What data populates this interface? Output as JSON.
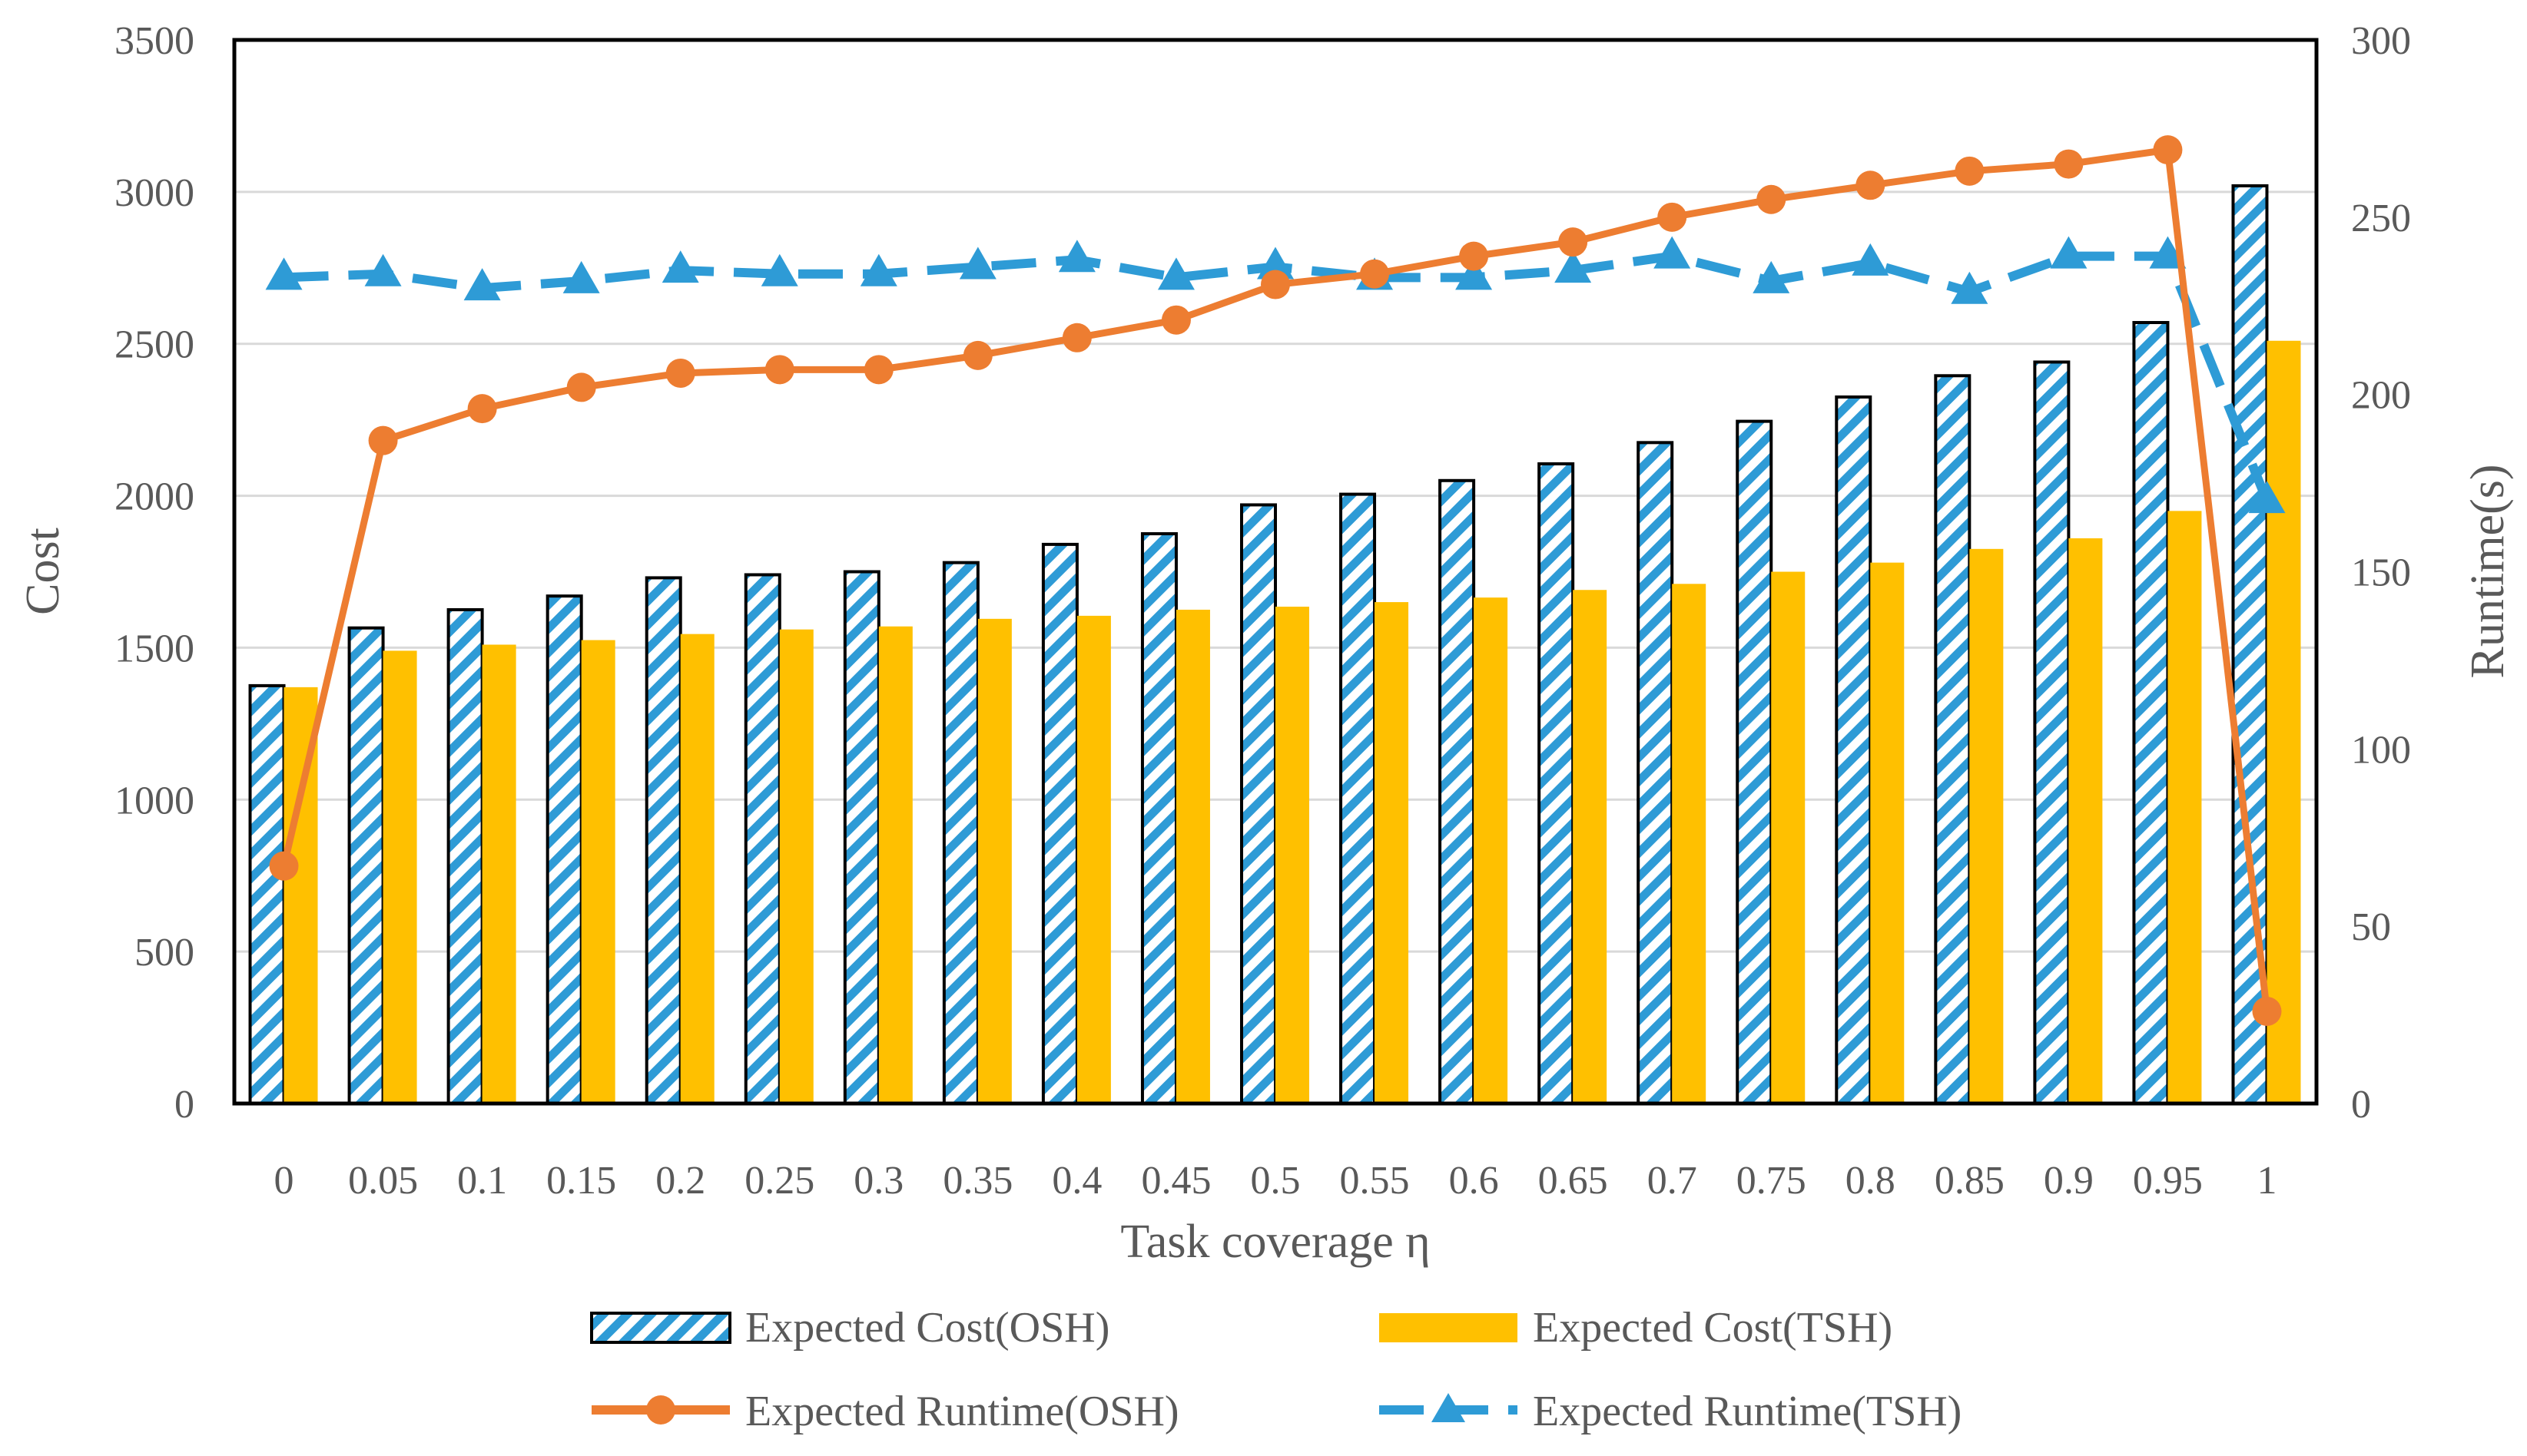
{
  "chart_data": {
    "type": "bar",
    "title": "",
    "xlabel": "Task coverage η",
    "ylabel": "Cost",
    "y2label": "Runtime(s)",
    "ylim": [
      0,
      3500
    ],
    "y2lim": [
      0,
      300
    ],
    "yticks": [
      "0",
      "500",
      "1000",
      "1500",
      "2000",
      "2500",
      "3000",
      "3500"
    ],
    "y2ticks": [
      "0",
      "50",
      "100",
      "150",
      "200",
      "250",
      "300"
    ],
    "categories": [
      "0",
      "0.05",
      "0.1",
      "0.15",
      "0.2",
      "0.25",
      "0.3",
      "0.35",
      "0.4",
      "0.45",
      "0.5",
      "0.55",
      "0.6",
      "0.65",
      "0.7",
      "0.75",
      "0.8",
      "0.85",
      "0.9",
      "0.95",
      "1"
    ],
    "grid": true,
    "legend_position": "bottom",
    "series": [
      {
        "name": "Expected Cost(OSH)",
        "kind": "bar",
        "axis": "left",
        "pattern": "diagonal-stripes",
        "color": "#2E9BD6",
        "edge_color": "#000000",
        "values": [
          1375,
          1565,
          1625,
          1670,
          1730,
          1740,
          1750,
          1780,
          1840,
          1875,
          1970,
          2005,
          2050,
          2105,
          2175,
          2245,
          2325,
          2395,
          2440,
          2570,
          3020
        ]
      },
      {
        "name": "Expected Cost(TSH)",
        "kind": "bar",
        "axis": "left",
        "color": "#FFC000",
        "values": [
          1370,
          1490,
          1510,
          1525,
          1545,
          1560,
          1570,
          1595,
          1605,
          1625,
          1635,
          1650,
          1665,
          1690,
          1710,
          1750,
          1780,
          1825,
          1860,
          1950,
          2510
        ]
      },
      {
        "name": "Expected Runtime(OSH)",
        "kind": "line",
        "axis": "right",
        "marker": "circle",
        "color": "#ED7D31",
        "values": [
          67,
          187,
          196,
          202,
          206,
          207,
          207,
          211,
          216,
          221,
          231,
          234,
          239,
          243,
          250,
          255,
          259,
          263,
          265,
          269,
          26
        ]
      },
      {
        "name": "Expected Runtime(TSH)",
        "kind": "line",
        "axis": "right",
        "marker": "triangle",
        "dash": "long-dash",
        "color": "#2E9BD6",
        "values": [
          233,
          234,
          230,
          232,
          235,
          234,
          234,
          236,
          238,
          233,
          236,
          233,
          233,
          235,
          239,
          232,
          237,
          229,
          239,
          239,
          170
        ]
      }
    ]
  }
}
